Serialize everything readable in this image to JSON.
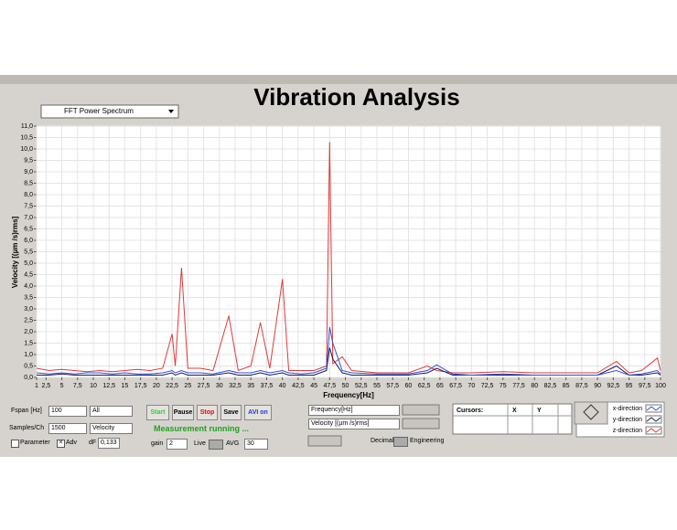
{
  "header": {
    "title": "Vibration Analysis",
    "view_select": "FFT Power Spectrum"
  },
  "chart_data": {
    "type": "line",
    "x_label": "Frequency[Hz]",
    "y_label": "Velocity [(µm /s)rms]",
    "x": [
      1,
      3,
      5,
      7,
      9,
      11,
      13,
      15,
      17,
      19,
      21,
      22.5,
      23,
      24,
      25,
      27,
      29,
      31.5,
      33,
      35,
      36.5,
      38,
      40,
      41,
      43,
      45,
      47,
      47.5,
      48,
      49.5,
      51,
      55,
      60,
      63,
      64.5,
      67,
      70,
      75,
      80,
      85,
      90,
      93,
      95,
      97,
      99.5,
      100
    ],
    "series": [
      {
        "name": "z-direction",
        "color": "#e03a3a",
        "values": [
          0.4,
          0.3,
          0.35,
          0.3,
          0.25,
          0.3,
          0.25,
          0.3,
          0.35,
          0.3,
          0.4,
          1.9,
          0.5,
          4.8,
          0.4,
          0.4,
          0.3,
          2.7,
          0.3,
          0.5,
          2.4,
          0.4,
          4.3,
          0.3,
          0.3,
          0.3,
          0.5,
          10.3,
          0.6,
          0.9,
          0.3,
          0.2,
          0.2,
          0.5,
          0.3,
          0.2,
          0.2,
          0.25,
          0.2,
          0.2,
          0.2,
          0.7,
          0.2,
          0.3,
          0.85,
          0.3
        ]
      },
      {
        "name": "y-direction",
        "color": "#1a1a5e",
        "values": [
          0.1,
          0.1,
          0.15,
          0.1,
          0.1,
          0.1,
          0.1,
          0.1,
          0.1,
          0.1,
          0.1,
          0.2,
          0.1,
          0.2,
          0.1,
          0.1,
          0.1,
          0.2,
          0.1,
          0.1,
          0.2,
          0.1,
          0.2,
          0.1,
          0.1,
          0.1,
          0.3,
          1.3,
          0.8,
          0.2,
          0.1,
          0.1,
          0.1,
          0.2,
          0.4,
          0.1,
          0.1,
          0.1,
          0.1,
          0.1,
          0.1,
          0.5,
          0.1,
          0.1,
          0.2,
          0.1
        ]
      },
      {
        "name": "x-direction",
        "color": "#3050d0",
        "values": [
          0.2,
          0.15,
          0.2,
          0.15,
          0.2,
          0.2,
          0.15,
          0.2,
          0.15,
          0.15,
          0.2,
          0.3,
          0.2,
          0.3,
          0.2,
          0.2,
          0.15,
          0.3,
          0.2,
          0.2,
          0.3,
          0.2,
          0.3,
          0.2,
          0.15,
          0.2,
          0.4,
          2.2,
          1.5,
          0.3,
          0.2,
          0.15,
          0.15,
          0.3,
          0.55,
          0.15,
          0.1,
          0.15,
          0.1,
          0.1,
          0.1,
          0.3,
          0.1,
          0.15,
          0.3,
          0.15
        ]
      }
    ],
    "xlim": [
      1,
      100
    ],
    "ylim": [
      0,
      11
    ],
    "grid": true,
    "xticks": [
      1,
      {
        "value": 2.5,
        "label": "2,5"
      },
      5,
      {
        "value": 7.5,
        "label": "7,5"
      },
      10,
      {
        "value": 12.5,
        "label": "12,5"
      },
      15,
      {
        "value": 17.5,
        "label": "17,5"
      },
      20,
      {
        "value": 22.5,
        "label": "22,5"
      },
      25,
      {
        "value": 27.5,
        "label": "27,5"
      },
      30,
      {
        "value": 32.5,
        "label": "32,5"
      },
      35,
      {
        "value": 37.5,
        "label": "37,5"
      },
      40,
      {
        "value": 42.5,
        "label": "42,5"
      },
      45,
      {
        "value": 47.5,
        "label": "47,5"
      },
      50,
      {
        "value": 52.5,
        "label": "52,5"
      },
      55,
      {
        "value": 57.5,
        "label": "57,5"
      },
      60,
      {
        "value": 62.5,
        "label": "62,5"
      },
      65,
      {
        "value": 67.5,
        "label": "67,5"
      },
      70,
      {
        "value": 72.5,
        "label": "72,5"
      },
      75,
      {
        "value": 77.5,
        "label": "77,5"
      },
      80,
      {
        "value": 82.5,
        "label": "82,5"
      },
      85,
      {
        "value": 87.5,
        "label": "87,5"
      },
      90,
      {
        "value": 92.5,
        "label": "92,5"
      },
      95,
      {
        "value": 97.5,
        "label": "97,5"
      },
      100
    ],
    "yticks": [
      {
        "value": 0,
        "label": "0,0"
      },
      {
        "value": 0.5,
        "label": "0,5"
      },
      {
        "value": 1,
        "label": "1,0"
      },
      {
        "value": 1.5,
        "label": "1,5"
      },
      {
        "value": 2,
        "label": "2,0"
      },
      {
        "value": 2.5,
        "label": "2,5"
      },
      {
        "value": 3,
        "label": "3,0"
      },
      {
        "value": 3.5,
        "label": "3,5"
      },
      {
        "value": 4,
        "label": "4,0"
      },
      {
        "value": 4.5,
        "label": "4,5"
      },
      {
        "value": 5,
        "label": "5,0"
      },
      {
        "value": 5.5,
        "label": "5,5"
      },
      {
        "value": 6,
        "label": "6,0"
      },
      {
        "value": 6.5,
        "label": "6,5"
      },
      {
        "value": 7,
        "label": "7,0"
      },
      {
        "value": 7.5,
        "label": "7,5"
      },
      {
        "value": 8,
        "label": "8,0"
      },
      {
        "value": 8.5,
        "label": "8,5"
      },
      {
        "value": 9,
        "label": "9,0"
      },
      {
        "value": 9.5,
        "label": "9,5"
      },
      {
        "value": 10,
        "label": "10,0"
      },
      {
        "value": 10.5,
        "label": "10,5"
      },
      {
        "value": 11,
        "label": "11,0"
      }
    ]
  },
  "controls": {
    "fspan_label": "Fspan [Hz]",
    "fspan": "100",
    "channel": "All",
    "samples_label": "Samples/Ch",
    "samples": "1500",
    "quantity": "Velocity",
    "parameter": "Parameter",
    "adv": "Adv",
    "df_label": "dF",
    "df": "0,133",
    "buttons": [
      "Start",
      "Pause",
      "Stop",
      "Save",
      "AVI on"
    ],
    "status": "Measurement running ...",
    "gain_label": "gain",
    "gain": "2",
    "live": "Live",
    "avg_label": "AVG",
    "avg": "30",
    "x_unit": "Frequency[Hz]",
    "y_unit": "Velocity [(µm /s)rms]",
    "decimal": "Decimal",
    "engineering": "Engineering",
    "cursors": [
      "Cursors:",
      "X",
      "Y"
    ]
  }
}
